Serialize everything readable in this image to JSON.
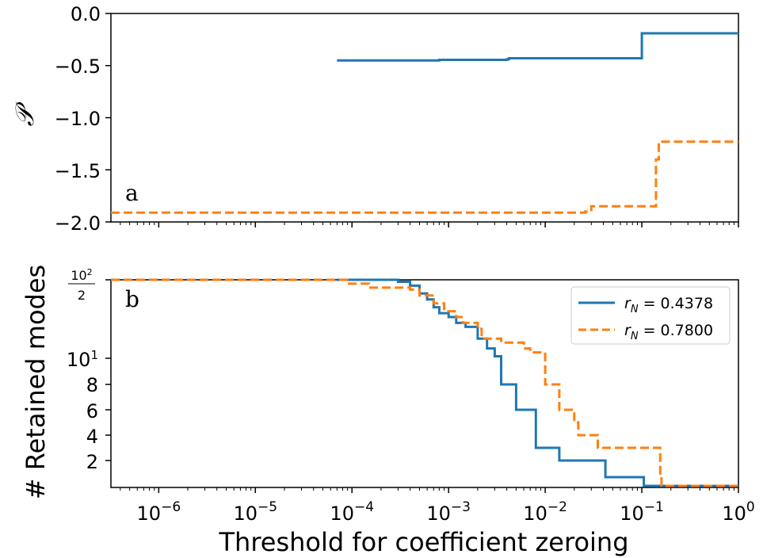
{
  "chart_data": [
    {
      "type": "line",
      "panel_label": "a",
      "ylabel": "𝒫",
      "ylim": [
        -2.0,
        0.0
      ],
      "yticks": [
        0.0,
        -0.5,
        -1.0,
        -1.5,
        -2.0
      ],
      "ytick_labels": [
        "0.0",
        "−0.5",
        "−1.0",
        "−1.5",
        "−2.0"
      ],
      "xscale": "log",
      "xlim": [
        3.2e-07,
        1.0
      ],
      "series": [
        {
          "color": "#1f77b4",
          "style": "solid",
          "x": [
            7e-05,
            0.0007,
            0.0008,
            0.004,
            0.0042,
            0.09,
            0.1,
            1.0
          ],
          "y": [
            -0.45,
            -0.45,
            -0.445,
            -0.44,
            -0.43,
            -0.43,
            -0.19,
            -0.19
          ]
        },
        {
          "color": "#ff7f0e",
          "style": "dashed",
          "x": [
            3.2e-07,
            0.026,
            0.03,
            0.12,
            0.14,
            0.15,
            1.0
          ],
          "y": [
            -1.91,
            -1.9,
            -1.85,
            -1.85,
            -1.4,
            -1.23,
            -1.23
          ]
        }
      ]
    },
    {
      "type": "line",
      "panel_label": "b",
      "ylabel": "# Retained modes",
      "yscale": "symlog",
      "ylim": [
        0,
        50
      ],
      "ytick_labels": [
        "10^2/2",
        "10^1",
        "8",
        "6",
        "4",
        "2"
      ],
      "xscale": "log",
      "xlim": [
        3.2e-07,
        1.0
      ],
      "xlabel": "Threshold for coefficient zeroing",
      "xticks": [
        "10^-6",
        "10^-5",
        "10^-4",
        "10^-3",
        "10^-2",
        "10^-1",
        "10^0"
      ],
      "legend_position": "upper right",
      "series": [
        {
          "name": "r_N = 0.4378",
          "color": "#1f77b4",
          "style": "solid",
          "x": [
            7e-05,
            0.0002,
            0.0003,
            0.0004,
            0.0005,
            0.0006,
            0.0007,
            0.0008,
            0.001,
            0.0012,
            0.0015,
            0.002,
            0.0025,
            0.003,
            0.0035,
            0.004,
            0.005,
            0.0065,
            0.008,
            0.013,
            0.014,
            0.04,
            0.042,
            0.1,
            0.105,
            1.0
          ],
          "y": [
            50,
            50,
            49,
            47,
            43,
            40,
            36,
            33,
            31,
            28,
            26,
            20,
            15,
            11,
            8,
            8,
            6,
            6,
            3,
            3,
            2,
            2,
            1,
            1,
            0,
            0
          ]
        },
        {
          "name": "r_N = 0.7800",
          "color": "#ff7f0e",
          "style": "dashed",
          "x": [
            3.2e-07,
            7e-05,
            9e-05,
            0.00015,
            0.0004,
            0.0005,
            0.0007,
            0.0009,
            0.0012,
            0.0014,
            0.002,
            0.0022,
            0.0035,
            0.006,
            0.007,
            0.01,
            0.014,
            0.02,
            0.022,
            0.03,
            0.035,
            0.13,
            0.155,
            0.16,
            1.0
          ],
          "y": [
            50,
            50,
            48,
            46,
            45,
            42,
            38,
            34,
            31,
            28,
            25,
            20,
            18,
            15,
            13,
            8,
            6,
            5,
            4,
            4,
            3,
            3,
            1,
            0,
            0
          ]
        }
      ]
    }
  ]
}
